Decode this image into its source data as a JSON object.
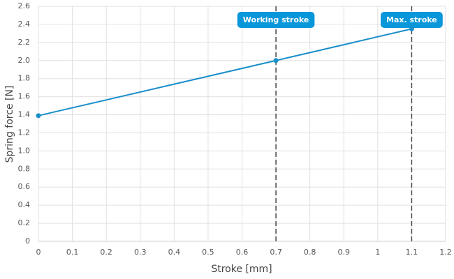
{
  "chart_data": {
    "type": "line",
    "x_label": "Stroke [mm]",
    "y_label": "Spring force [N]",
    "series": [
      {
        "name": "Spring force",
        "color": "#1a8fcc",
        "x": [
          0,
          0.7,
          1.1
        ],
        "values": [
          1.39,
          2.0,
          2.35
        ]
      }
    ],
    "xlim": [
      0,
      1.2
    ],
    "xticks": [
      0,
      0.1,
      0.2,
      0.3,
      0.4,
      0.5,
      0.6,
      0.7,
      0.8,
      0.9,
      1.0,
      1.1,
      1.2
    ],
    "ylim": [
      0,
      2.6
    ],
    "yticks": [
      0,
      0.2,
      0.4,
      0.6,
      0.8,
      {
        "value": 1.0,
        "label": "1.0"
      },
      1.2,
      1.4,
      1.6,
      1.8,
      {
        "value": 2.0,
        "label": "2.0"
      },
      2.2,
      2.4,
      2.6
    ],
    "grid": true,
    "annotations": [
      {
        "x": 0.7,
        "label": "Working stroke",
        "color": "#0a97d9"
      },
      {
        "x": 1.1,
        "label": "Max. stroke",
        "color": "#0a97d9"
      }
    ]
  }
}
